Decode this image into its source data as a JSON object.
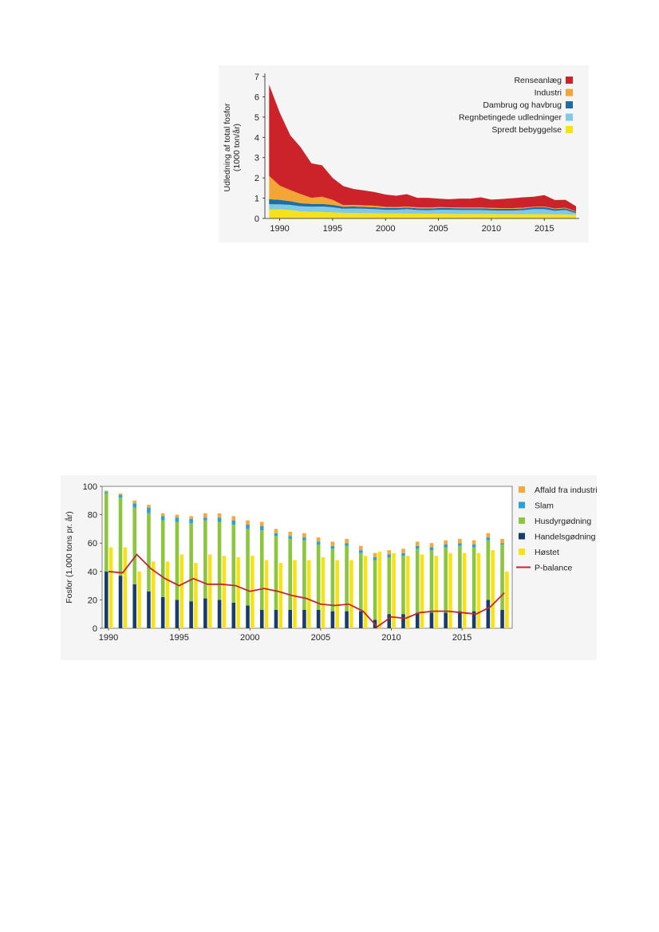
{
  "chart_data": [
    {
      "type": "area",
      "stacked": true,
      "ylabel_line1": "Udledning af total fosfor",
      "ylabel_line2": "(1000 ton/år)",
      "ylim": [
        0,
        7
      ],
      "xlim": [
        1988.6,
        2018.3
      ],
      "yticks": [
        "0",
        "1",
        "2",
        "3",
        "4",
        "5",
        "6",
        "7"
      ],
      "xticks": [
        "1990",
        "1995",
        "2000",
        "2005",
        "2010",
        "2015"
      ],
      "legend_position": "top-right",
      "x": [
        1989,
        1990,
        1991,
        1992,
        1993,
        1994,
        1995,
        1996,
        1997,
        1998,
        1999,
        2000,
        2001,
        2002,
        2003,
        2004,
        2005,
        2006,
        2007,
        2008,
        2009,
        2010,
        2011,
        2012,
        2013,
        2014,
        2015,
        2016,
        2017,
        2018
      ],
      "series": [
        {
          "name": "Spredt bebyggelse",
          "color": "#f5e21a",
          "values": [
            0.45,
            0.45,
            0.42,
            0.35,
            0.33,
            0.32,
            0.3,
            0.28,
            0.27,
            0.26,
            0.26,
            0.25,
            0.25,
            0.24,
            0.24,
            0.23,
            0.23,
            0.23,
            0.22,
            0.22,
            0.22,
            0.22,
            0.21,
            0.21,
            0.21,
            0.21,
            0.21,
            0.2,
            0.2,
            0.18
          ]
        },
        {
          "name": "Regnbetingede udledninger",
          "color": "#7dc9e7",
          "values": [
            0.25,
            0.25,
            0.25,
            0.25,
            0.25,
            0.27,
            0.25,
            0.2,
            0.22,
            0.22,
            0.2,
            0.18,
            0.18,
            0.22,
            0.18,
            0.18,
            0.2,
            0.2,
            0.2,
            0.2,
            0.2,
            0.18,
            0.18,
            0.18,
            0.2,
            0.25,
            0.25,
            0.18,
            0.22,
            0.08
          ]
        },
        {
          "name": "Dambrug og havbrug",
          "color": "#1c6ea4",
          "values": [
            0.25,
            0.22,
            0.18,
            0.15,
            0.14,
            0.13,
            0.12,
            0.1,
            0.1,
            0.09,
            0.09,
            0.08,
            0.08,
            0.08,
            0.08,
            0.08,
            0.08,
            0.08,
            0.08,
            0.08,
            0.08,
            0.08,
            0.08,
            0.08,
            0.08,
            0.09,
            0.1,
            0.08,
            0.08,
            0.07
          ]
        },
        {
          "name": "Industri",
          "color": "#f3a535",
          "values": [
            1.15,
            0.7,
            0.55,
            0.45,
            0.3,
            0.35,
            0.25,
            0.08,
            0.08,
            0.08,
            0.08,
            0.06,
            0.05,
            0.05,
            0.05,
            0.05,
            0.05,
            0.04,
            0.04,
            0.04,
            0.04,
            0.04,
            0.04,
            0.04,
            0.04,
            0.03,
            0.03,
            0.03,
            0.03,
            0.02
          ]
        },
        {
          "name": "Renseanlæg",
          "color": "#cc2229",
          "values": [
            4.5,
            3.6,
            2.7,
            2.3,
            1.7,
            1.55,
            1.08,
            0.94,
            0.78,
            0.73,
            0.67,
            0.61,
            0.56,
            0.61,
            0.47,
            0.48,
            0.42,
            0.4,
            0.44,
            0.44,
            0.5,
            0.41,
            0.45,
            0.49,
            0.51,
            0.49,
            0.56,
            0.42,
            0.39,
            0.25
          ]
        }
      ]
    },
    {
      "type": "bar",
      "ylabel": "Fosfor (1.000 tons pr. år)",
      "ylim": [
        0,
        100
      ],
      "yticks": [
        "0",
        "20",
        "40",
        "60",
        "80",
        "100"
      ],
      "xticks": [
        "1990",
        "1995",
        "2000",
        "2005",
        "2010",
        "2015"
      ],
      "legend_position": "right",
      "x": [
        1990,
        1991,
        1992,
        1993,
        1994,
        1995,
        1996,
        1997,
        1998,
        1999,
        2000,
        2001,
        2002,
        2003,
        2004,
        2005,
        2006,
        2007,
        2008,
        2009,
        2010,
        2011,
        2012,
        2013,
        2014,
        2015,
        2016,
        2017,
        2018
      ],
      "stack_series": [
        {
          "name": "Handelsgødning",
          "color": "#173c6e",
          "values": [
            40,
            37,
            31,
            26,
            22,
            20,
            19,
            21,
            20,
            18,
            16,
            13,
            13,
            13,
            13,
            13,
            12,
            12,
            12,
            6,
            10,
            10,
            11,
            11,
            11,
            12,
            12,
            20,
            13
          ]
        },
        {
          "name": "Husdyrgødning",
          "color": "#8cc63f",
          "values": [
            55,
            55,
            54,
            55,
            54,
            55,
            55,
            55,
            55,
            55,
            54,
            56,
            52,
            50,
            49,
            46,
            44,
            46,
            41,
            42,
            40,
            41,
            45,
            44,
            46,
            46,
            45,
            42,
            46
          ]
        },
        {
          "name": "Slam",
          "color": "#2f9fd8",
          "values": [
            1,
            2,
            3,
            4,
            3,
            3,
            3,
            2,
            3,
            3,
            3,
            3,
            2,
            2,
            2,
            2,
            2,
            2,
            2,
            2,
            2,
            2,
            2,
            2,
            2,
            2,
            2,
            2,
            1
          ]
        },
        {
          "name": "Affald fra industri",
          "color": "#f5a93b",
          "values": [
            1,
            1,
            2,
            2,
            2,
            2,
            2,
            3,
            3,
            3,
            3,
            3,
            3,
            3,
            3,
            3,
            3,
            3,
            3,
            3,
            3,
            3,
            3,
            3,
            3,
            3,
            3,
            3,
            3
          ]
        }
      ],
      "side_series": {
        "name": "Høstet",
        "color": "#f7e21a",
        "values": [
          57,
          57,
          40,
          47,
          47,
          52,
          46,
          52,
          51,
          50,
          51,
          48,
          46,
          48,
          48,
          50,
          48,
          48,
          51,
          54,
          53,
          51,
          52,
          51,
          53,
          53,
          53,
          55,
          40
        ]
      },
      "line_series": {
        "name": "P-balance",
        "color": "#c1272d",
        "values": [
          40,
          39,
          52,
          42,
          35,
          30,
          35,
          31,
          31,
          30,
          26,
          28,
          26,
          23,
          21,
          17,
          16,
          17,
          12,
          1,
          8,
          7,
          11,
          12,
          12,
          11,
          10,
          15,
          25
        ]
      }
    }
  ]
}
